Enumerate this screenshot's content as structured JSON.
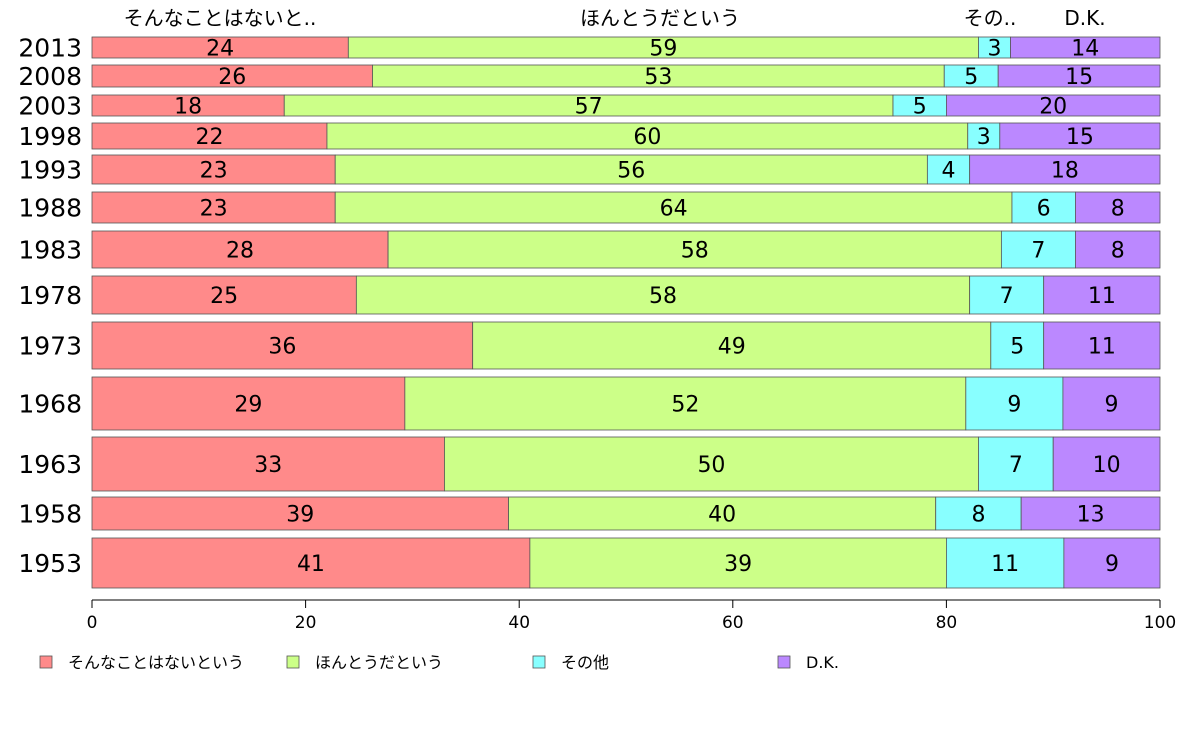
{
  "chart_data": {
    "type": "bar",
    "orientation": "horizontal",
    "stacked": true,
    "categories": [
      "2013",
      "2008",
      "2003",
      "1998",
      "1993",
      "1988",
      "1983",
      "1978",
      "1973",
      "1968",
      "1963",
      "1958",
      "1953"
    ],
    "series": [
      {
        "name": "そんなことはないという",
        "color": "#ff8a8a",
        "values": [
          24,
          26,
          18,
          22,
          23,
          23,
          28,
          25,
          36,
          29,
          33,
          39,
          41
        ]
      },
      {
        "name": "ほんとうだという",
        "color": "#ccff88",
        "values": [
          59,
          53,
          57,
          60,
          56,
          64,
          58,
          58,
          49,
          52,
          50,
          40,
          39
        ]
      },
      {
        "name": "その他",
        "color": "#88ffff",
        "values": [
          3,
          5,
          5,
          3,
          4,
          6,
          7,
          7,
          5,
          9,
          7,
          8,
          11
        ]
      },
      {
        "name": "D.K.",
        "color": "#bb88ff",
        "values": [
          14,
          15,
          20,
          15,
          18,
          8,
          8,
          11,
          11,
          9,
          10,
          13,
          9
        ]
      }
    ],
    "top_labels": [
      "そんなことはないと..",
      "ほんとうだという",
      "その..",
      "D.K."
    ],
    "x_ticks": [
      "0",
      "20",
      "40",
      "60",
      "80",
      "100"
    ],
    "xlim": [
      0,
      100
    ],
    "legend_position": "bottom",
    "grid": false
  }
}
